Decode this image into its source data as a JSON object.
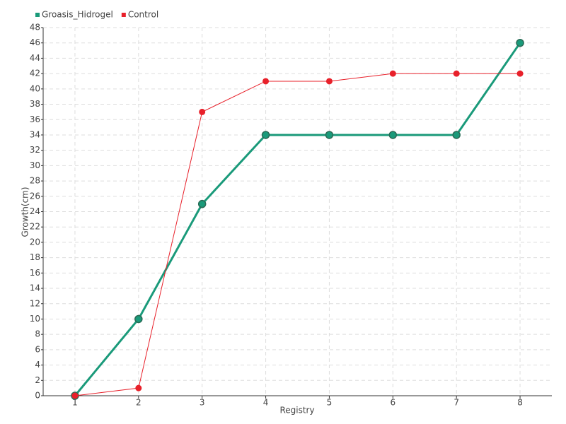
{
  "chart_data": {
    "type": "line",
    "x_label": "Registry",
    "y_label": "Growth(cm)",
    "categories": [
      "1",
      "2",
      "3",
      "4",
      "5",
      "6",
      "7",
      "8"
    ],
    "series": [
      {
        "name": "Groasis_Hidrogel",
        "color": "#1a9a7a",
        "values": [
          0,
          10,
          25,
          34,
          34,
          34,
          34,
          46
        ]
      },
      {
        "name": "Control",
        "color": "#e8202a",
        "values": [
          0,
          1,
          37,
          41,
          41,
          42,
          42,
          42
        ]
      }
    ],
    "ylim": [
      0,
      48
    ],
    "yticks": [
      0,
      2,
      4,
      6,
      8,
      10,
      12,
      14,
      16,
      18,
      20,
      22,
      24,
      26,
      28,
      30,
      32,
      34,
      36,
      38,
      40,
      42,
      44,
      46,
      48
    ],
    "grid": true,
    "legend": "top-left"
  }
}
